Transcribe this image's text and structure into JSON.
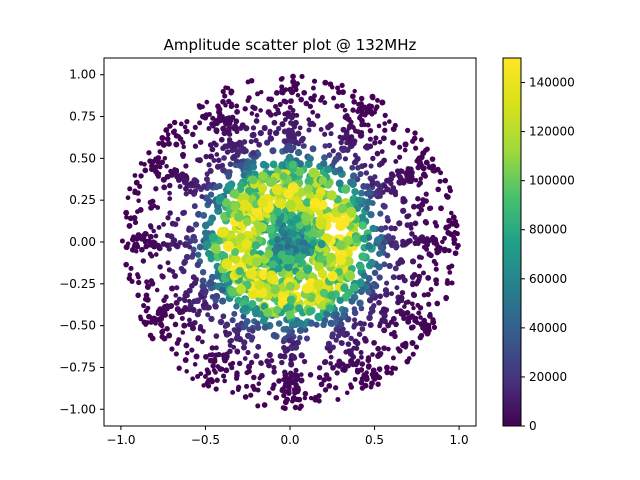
{
  "chart_data": {
    "type": "scatter",
    "title": "Amplitude scatter plot @ 132MHz",
    "xlabel": "",
    "ylabel": "",
    "xlim": [
      -1.1,
      1.1
    ],
    "ylim": [
      -1.1,
      1.1
    ],
    "x_ticks": [
      -1.0,
      -0.5,
      0.0,
      0.5,
      1.0
    ],
    "x_tick_labels": [
      "−1.0",
      "−0.5",
      "0.0",
      "0.5",
      "1.0"
    ],
    "y_ticks": [
      -1.0,
      -0.75,
      -0.5,
      -0.25,
      0.0,
      0.25,
      0.5,
      0.75,
      1.0
    ],
    "y_tick_labels": [
      "−1.00",
      "−0.75",
      "−0.50",
      "−0.25",
      "0.00",
      "0.25",
      "0.50",
      "0.75",
      "1.00"
    ],
    "grid": false,
    "colormap": "viridis",
    "colorbar": {
      "range": [
        0,
        150000
      ],
      "ticks": [
        0,
        20000,
        40000,
        60000,
        80000,
        100000,
        120000,
        140000
      ],
      "tick_labels": [
        "0",
        "20000",
        "40000",
        "60000",
        "80000",
        "100000",
        "120000",
        "140000"
      ]
    },
    "distribution": {
      "shape": "disk",
      "radius": 1.0,
      "points_approx": 2600,
      "radial_profile": [
        {
          "r": 0.0,
          "value": 60000
        },
        {
          "r": 0.1,
          "value": 70000
        },
        {
          "r": 0.2,
          "value": 100000
        },
        {
          "r": 0.3,
          "value": 135000
        },
        {
          "r": 0.4,
          "value": 110000
        },
        {
          "r": 0.5,
          "value": 50000
        },
        {
          "r": 0.6,
          "value": 15000
        },
        {
          "r": 0.8,
          "value": 3000
        },
        {
          "r": 1.0,
          "value": 0
        }
      ]
    }
  }
}
